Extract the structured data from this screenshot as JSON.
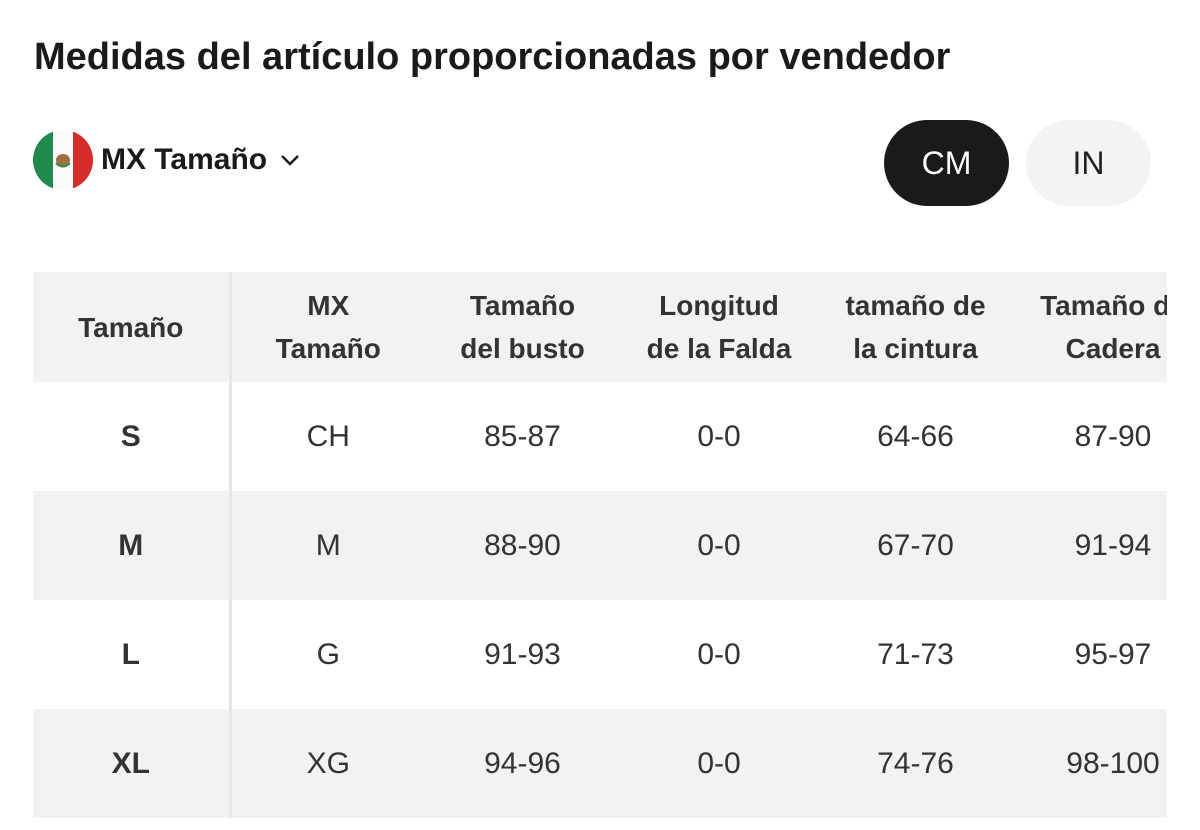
{
  "header": {
    "title": "Medidas del artículo proporcionadas por vendedor",
    "size_selector": "MX Tamaño",
    "units": [
      "CM",
      "IN"
    ]
  },
  "table": {
    "columns": [
      [
        "Tamaño"
      ],
      [
        "MX",
        "Tamaño"
      ],
      [
        "Tamaño",
        "del busto"
      ],
      [
        "Longitud",
        "de la Falda"
      ],
      [
        "tamaño de",
        "la cintura"
      ],
      [
        "Tamaño de",
        "Cadera"
      ]
    ],
    "rows": [
      [
        "S",
        "CH",
        "85-87",
        "0-0",
        "64-66",
        "87-90"
      ],
      [
        "M",
        "M",
        "88-90",
        "0-0",
        "67-70",
        "91-94"
      ],
      [
        "L",
        "G",
        "91-93",
        "0-0",
        "71-73",
        "95-97"
      ],
      [
        "XL",
        "XG",
        "94-96",
        "0-0",
        "74-76",
        "98-100"
      ]
    ]
  }
}
